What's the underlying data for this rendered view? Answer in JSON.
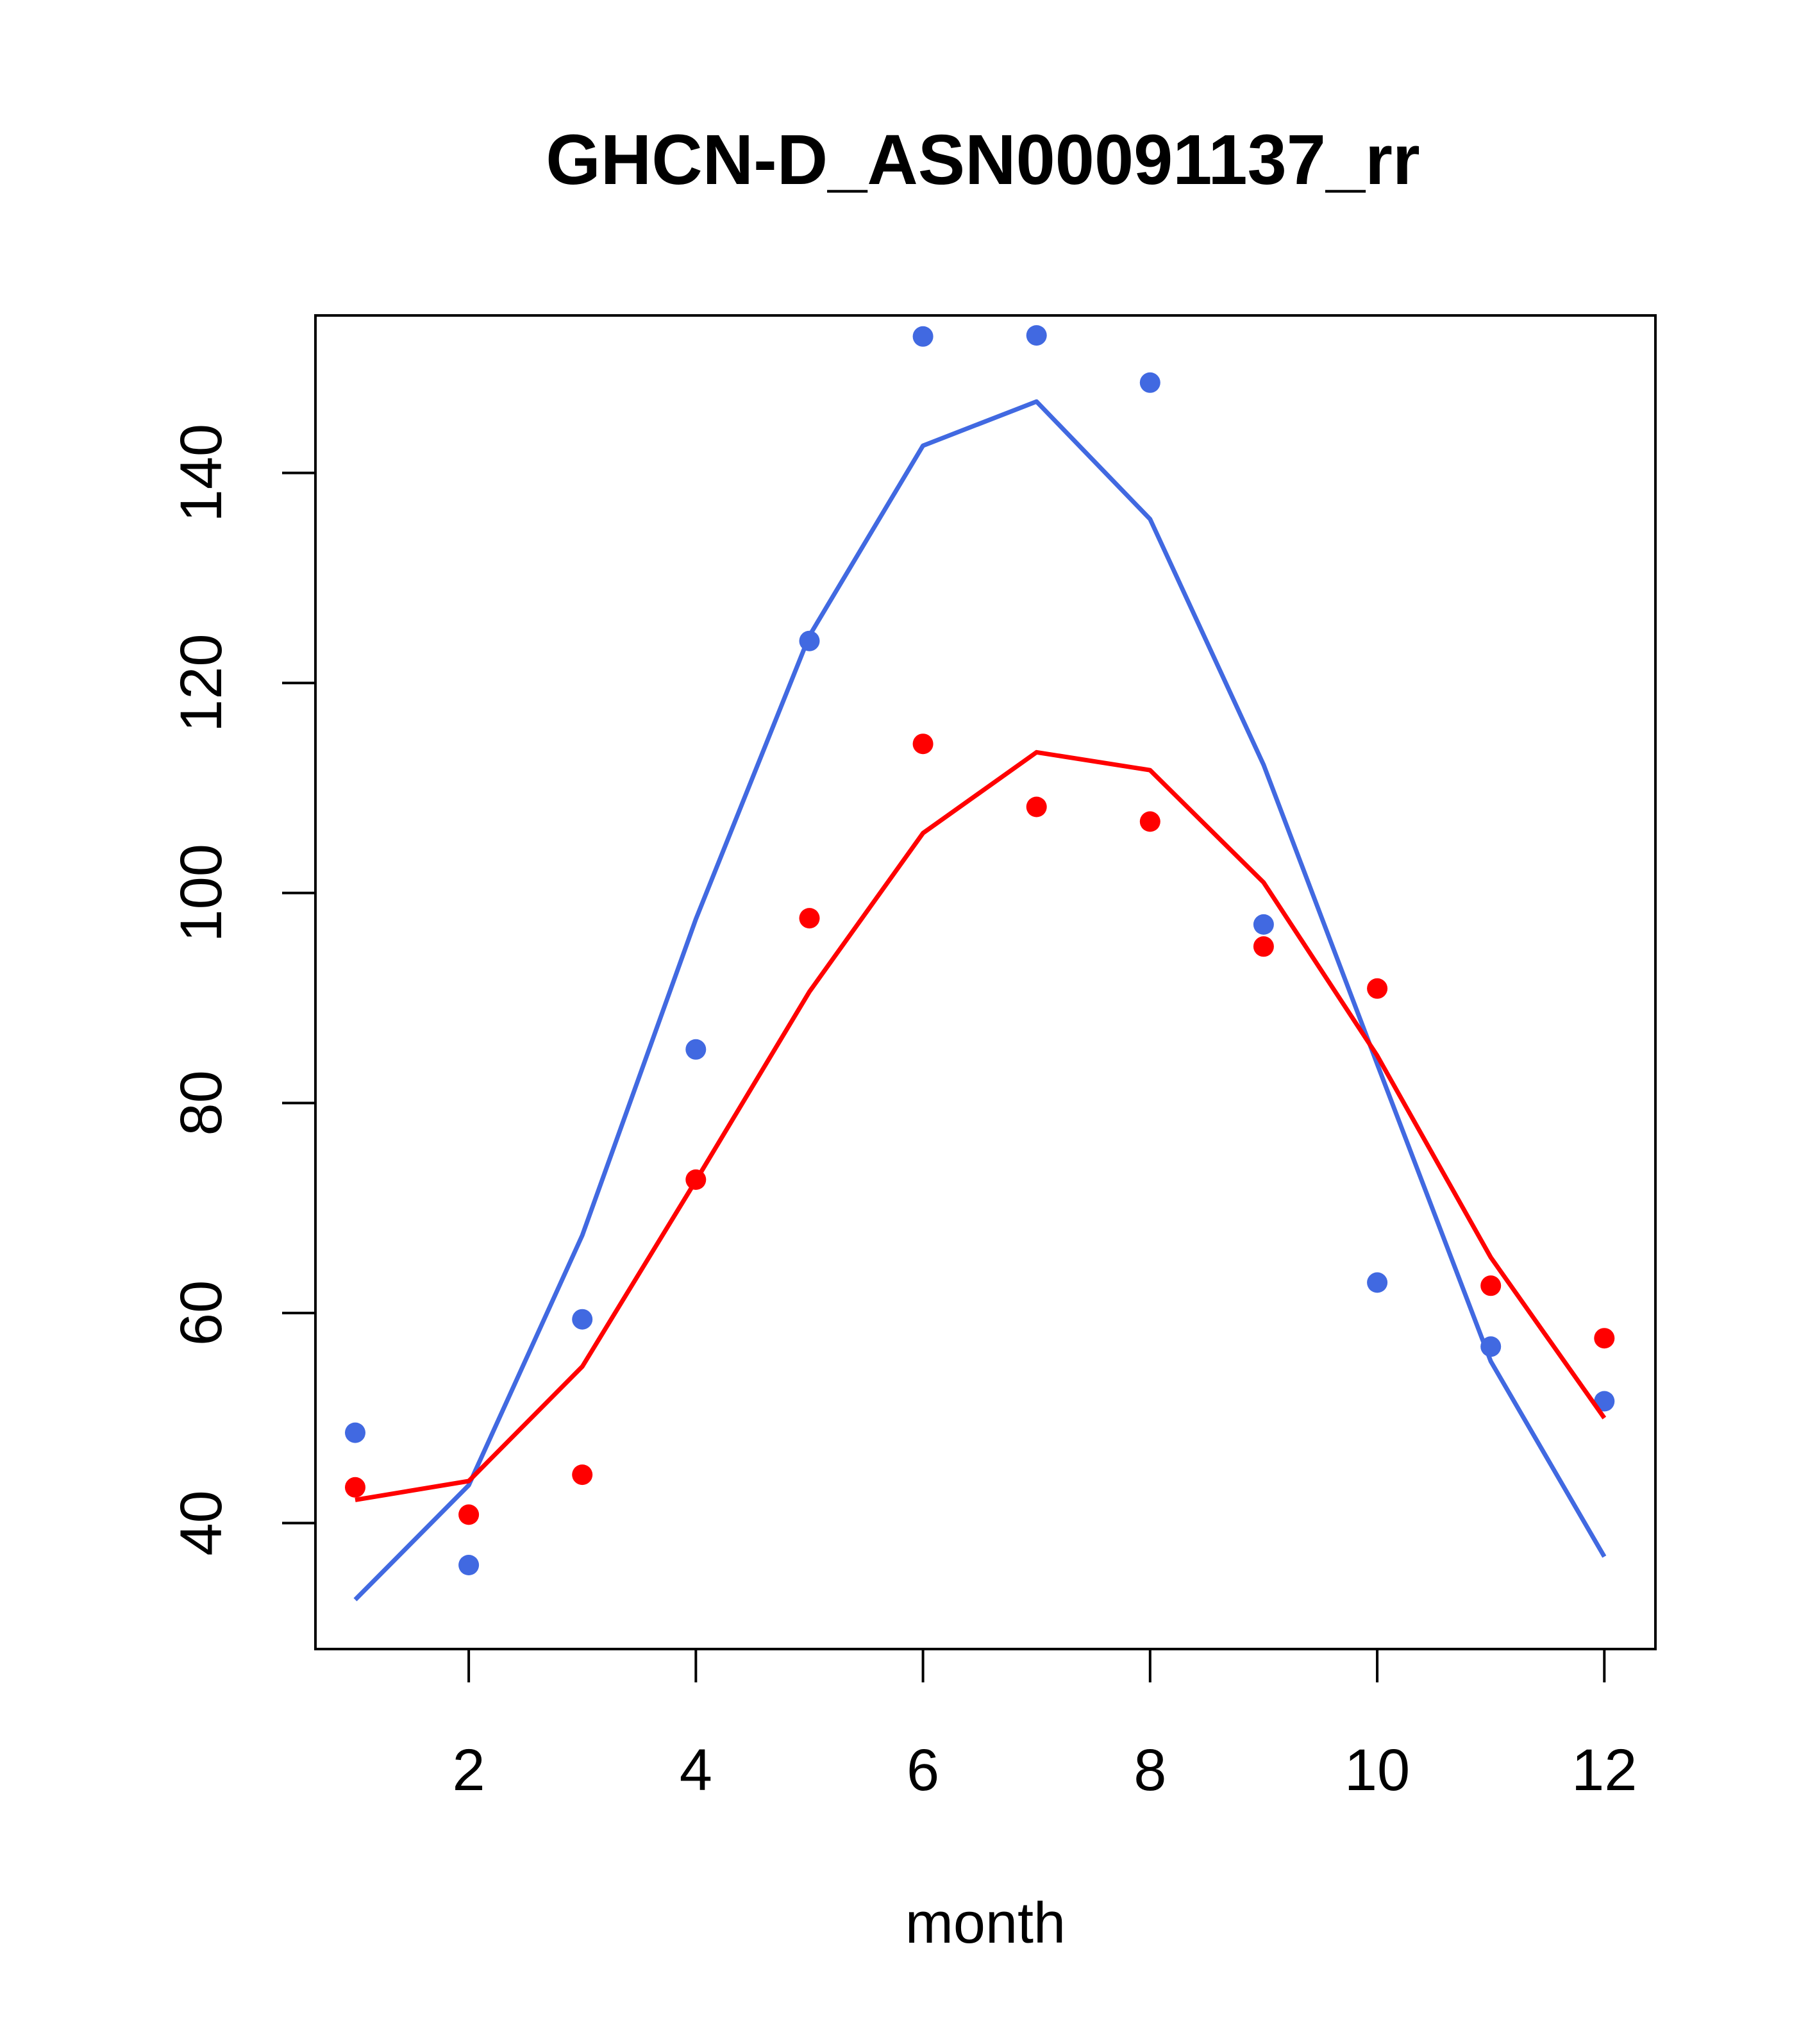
{
  "chart_data": {
    "type": "scatter",
    "title": "GHCN-D_ASN00091137_rr",
    "xlabel": "month",
    "ylabel": "",
    "xlim": [
      0.65,
      12.45
    ],
    "ylim": [
      28,
      155
    ],
    "xticks": [
      2,
      4,
      6,
      8,
      10,
      12
    ],
    "yticks": [
      40,
      60,
      80,
      100,
      120,
      140
    ],
    "grid": false,
    "series": [
      {
        "color": "#4169E1",
        "marker": "point",
        "x": [
          1,
          2,
          3,
          4,
          5,
          6,
          7,
          8,
          9,
          10,
          11,
          12
        ],
        "points": [
          48.6,
          36.0,
          59.4,
          85.1,
          124.0,
          153.0,
          153.1,
          148.6,
          97.0,
          62.9,
          56.8,
          51.6
        ],
        "fit": [
          32.7,
          43.6,
          67.4,
          97.5,
          124.5,
          142.6,
          146.8,
          135.6,
          112.2,
          83.7,
          55.4,
          36.8
        ]
      },
      {
        "color": "#FF0000",
        "marker": "point",
        "x": [
          1,
          2,
          3,
          4,
          5,
          6,
          7,
          8,
          9,
          10,
          11,
          12
        ],
        "points": [
          43.4,
          40.8,
          44.6,
          72.7,
          97.6,
          114.2,
          108.2,
          106.8,
          94.9,
          90.9,
          62.6,
          57.6
        ],
        "fit": [
          42.2,
          44.0,
          54.9,
          72.6,
          90.6,
          105.7,
          113.4,
          111.7,
          101.0,
          84.5,
          65.3,
          50.0
        ]
      }
    ]
  }
}
